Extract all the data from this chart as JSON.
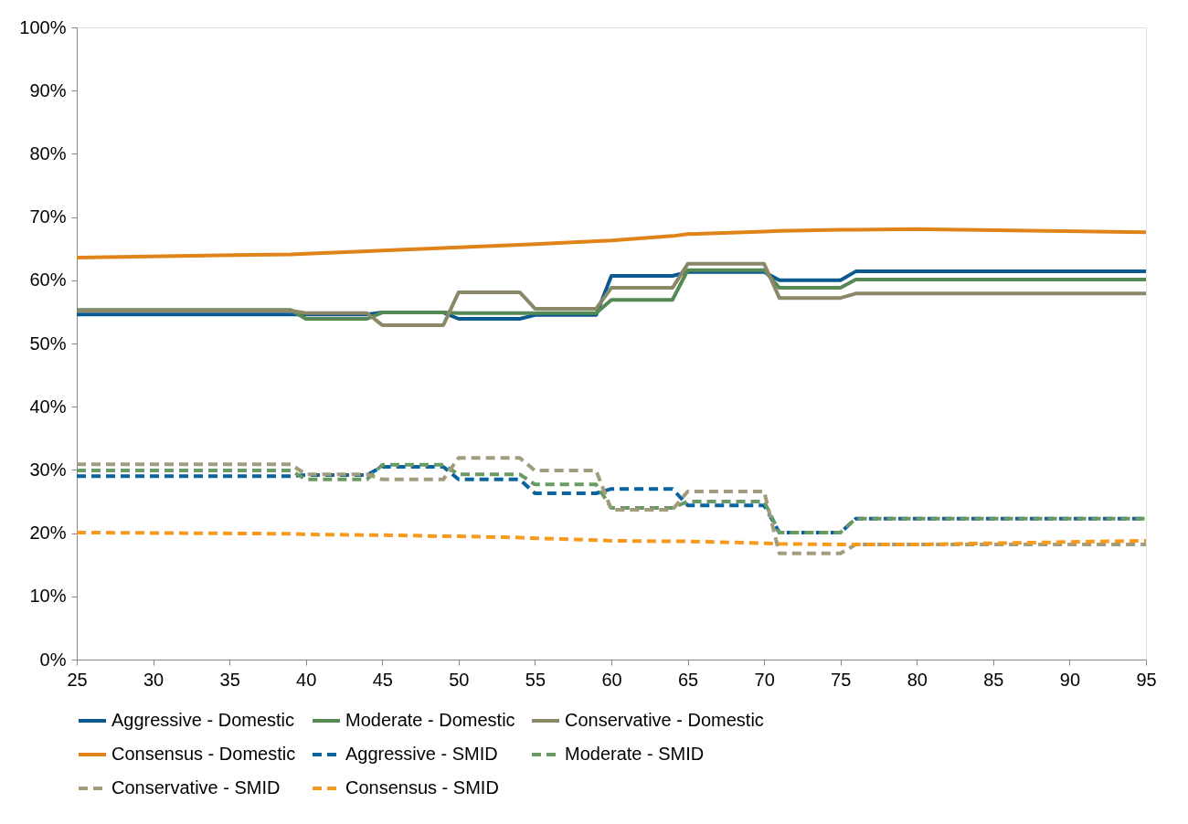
{
  "chart_data": {
    "type": "line",
    "x": [
      25,
      39,
      40,
      44,
      45,
      49,
      50,
      54,
      55,
      59,
      60,
      64,
      65,
      70,
      71,
      75,
      76,
      80,
      95
    ],
    "xlim": [
      25,
      95
    ],
    "xticks": [
      25,
      30,
      35,
      40,
      45,
      50,
      55,
      60,
      65,
      70,
      75,
      80,
      85,
      90,
      95
    ],
    "ylim": [
      0,
      100
    ],
    "yticks": [
      {
        "value": 0,
        "label": "0%"
      },
      {
        "value": 10,
        "label": "10%"
      },
      {
        "value": 20,
        "label": "20%"
      },
      {
        "value": 30,
        "label": "30%"
      },
      {
        "value": 40,
        "label": "40%"
      },
      {
        "value": 50,
        "label": "50%"
      },
      {
        "value": 60,
        "label": "60%"
      },
      {
        "value": 70,
        "label": "70%"
      },
      {
        "value": 80,
        "label": "80%"
      },
      {
        "value": 90,
        "label": "90%"
      },
      {
        "value": 100,
        "label": "100%"
      }
    ],
    "grid": false,
    "legend": "bottom",
    "marker": "none",
    "series": [
      {
        "name": "Aggressive - Domestic",
        "color": "#0b5a8f",
        "line_style": "solid",
        "values": [
          54.6,
          54.6,
          54.6,
          54.6,
          54.9,
          54.9,
          53.9,
          53.9,
          54.5,
          54.5,
          60.7,
          60.7,
          61.3,
          61.3,
          60.0,
          60.0,
          61.4,
          61.4,
          61.4
        ]
      },
      {
        "name": "Moderate - Domestic",
        "color": "#568a55",
        "line_style": "solid",
        "values": [
          55.3,
          55.3,
          53.9,
          53.9,
          54.9,
          54.9,
          54.8,
          54.8,
          54.8,
          54.8,
          56.9,
          56.9,
          61.6,
          61.6,
          58.8,
          58.8,
          60.1,
          60.1,
          60.1
        ]
      },
      {
        "name": "Conservative - Domestic",
        "color": "#8b8868",
        "line_style": "solid",
        "values": [
          55.2,
          55.2,
          54.8,
          54.8,
          52.9,
          52.9,
          58.1,
          58.1,
          55.5,
          55.5,
          58.8,
          58.8,
          62.6,
          62.6,
          57.2,
          57.2,
          57.9,
          57.9,
          57.9
        ]
      },
      {
        "name": "Consensus - Domestic",
        "color": "#e0841a",
        "line_style": "solid",
        "values": [
          63.6,
          64.1,
          64.2,
          64.6,
          64.7,
          65.1,
          65.2,
          65.6,
          65.7,
          66.2,
          66.3,
          67.0,
          67.3,
          67.7,
          67.8,
          68.0,
          68.0,
          68.1,
          67.6
        ]
      },
      {
        "name": "Aggressive - SMID",
        "color": "#0a64a0",
        "line_style": "dashed",
        "values": [
          29.0,
          29.0,
          29.2,
          29.2,
          30.5,
          30.5,
          28.5,
          28.5,
          26.3,
          26.3,
          27.0,
          27.0,
          24.4,
          24.4,
          20.1,
          20.1,
          22.3,
          22.3,
          22.3
        ]
      },
      {
        "name": "Moderate - SMID",
        "color": "#6a9a64",
        "line_style": "dashed",
        "values": [
          29.9,
          29.9,
          28.5,
          28.5,
          30.8,
          30.8,
          29.3,
          29.3,
          27.7,
          27.7,
          24.0,
          24.0,
          25.0,
          25.0,
          20.1,
          20.1,
          22.3,
          22.3,
          22.3
        ]
      },
      {
        "name": "Conservative - SMID",
        "color": "#a09c7c",
        "line_style": "dashed",
        "values": [
          30.9,
          30.9,
          29.3,
          29.3,
          28.5,
          28.5,
          31.9,
          31.9,
          29.9,
          29.9,
          23.7,
          23.7,
          26.6,
          26.6,
          16.8,
          16.8,
          18.2,
          18.2,
          18.2
        ]
      },
      {
        "name": "Consensus - SMID",
        "color": "#f79a20",
        "line_style": "dashed",
        "values": [
          20.1,
          19.9,
          19.8,
          19.7,
          19.7,
          19.5,
          19.5,
          19.3,
          19.2,
          18.9,
          18.8,
          18.7,
          18.7,
          18.4,
          18.3,
          18.2,
          18.2,
          18.2,
          18.8
        ]
      }
    ]
  }
}
